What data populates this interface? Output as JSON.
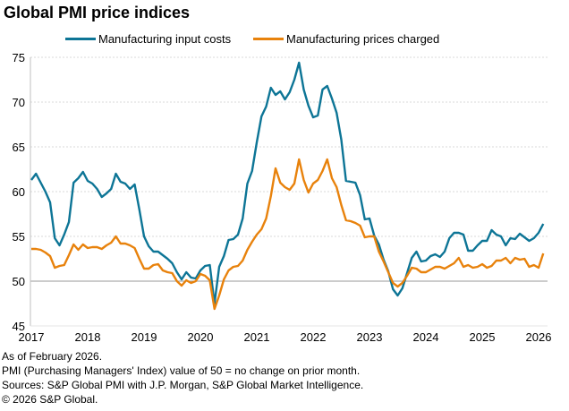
{
  "chart_data": {
    "type": "line",
    "title": "Global PMI price indices",
    "xlabel": "",
    "ylabel": "",
    "ylim": [
      45,
      75
    ],
    "yticks": [
      "45",
      "50",
      "55",
      "60",
      "65",
      "70",
      "75"
    ],
    "xticks": [
      "2017",
      "2018",
      "2019",
      "2020",
      "2021",
      "2022",
      "2023",
      "2024",
      "2025",
      "2026"
    ],
    "x_start": "2017-01",
    "x_end": "2026-02",
    "frequency": "monthly",
    "grid": true,
    "reference_line": 50,
    "legend_position": "top",
    "series": [
      {
        "name": "Manufacturing input costs",
        "color": "#0d7596",
        "values": [
          61.3,
          62.0,
          61.0,
          60.0,
          58.8,
          54.8,
          54.0,
          55.2,
          56.6,
          61.0,
          61.5,
          62.2,
          61.2,
          60.9,
          60.3,
          59.4,
          59.8,
          60.3,
          62.0,
          61.1,
          60.9,
          60.3,
          60.8,
          58.0,
          55.0,
          53.9,
          53.3,
          53.3,
          52.9,
          52.5,
          52.0,
          51.0,
          50.2,
          51.0,
          50.4,
          50.3,
          51.2,
          51.7,
          51.8,
          47.5,
          51.6,
          52.8,
          54.6,
          54.7,
          55.2,
          57.0,
          60.9,
          62.3,
          65.5,
          68.4,
          69.5,
          71.6,
          70.8,
          71.2,
          70.3,
          71.1,
          72.5,
          74.4,
          71.4,
          69.6,
          68.3,
          68.5,
          71.4,
          71.8,
          70.4,
          68.8,
          65.8,
          61.2,
          61.1,
          61.0,
          59.6,
          56.9,
          57.0,
          55.1,
          54.1,
          52.4,
          51.1,
          49.1,
          48.4,
          49.2,
          50.9,
          52.6,
          53.3,
          52.2,
          52.3,
          52.8,
          53.0,
          52.7,
          53.3,
          54.8,
          55.4,
          55.4,
          55.2,
          53.4,
          53.4,
          54.0,
          54.5,
          54.5,
          55.7,
          55.2,
          55.0,
          54.0,
          54.8,
          54.7,
          55.3,
          54.9,
          54.5,
          54.8,
          55.4,
          56.4
        ]
      },
      {
        "name": "Manufacturing prices charged",
        "color": "#e8820c",
        "values": [
          53.6,
          53.6,
          53.5,
          53.2,
          52.8,
          51.5,
          51.7,
          51.8,
          52.9,
          54.1,
          53.5,
          54.1,
          53.7,
          53.8,
          53.8,
          53.6,
          54.0,
          54.3,
          55.0,
          54.2,
          54.2,
          54.0,
          53.7,
          52.5,
          51.4,
          51.4,
          51.8,
          51.9,
          51.2,
          51.0,
          50.9,
          50.0,
          49.5,
          50.1,
          49.8,
          50.0,
          50.8,
          50.6,
          50.1,
          46.9,
          48.4,
          50.2,
          51.2,
          51.6,
          51.7,
          52.3,
          53.5,
          54.4,
          55.2,
          55.8,
          57.0,
          59.5,
          62.6,
          61.0,
          60.5,
          60.2,
          60.9,
          63.6,
          61.3,
          59.9,
          60.9,
          61.3,
          62.3,
          63.6,
          61.5,
          60.5,
          58.5,
          56.8,
          56.7,
          56.5,
          56.2,
          54.9,
          55.0,
          55.0,
          53.3,
          52.2,
          51.0,
          49.8,
          49.4,
          49.8,
          50.6,
          51.5,
          51.4,
          51.0,
          51.0,
          51.3,
          51.6,
          51.6,
          51.4,
          51.7,
          52.0,
          52.6,
          51.6,
          51.8,
          51.5,
          51.6,
          51.9,
          51.5,
          51.7,
          52.3,
          52.3,
          52.6,
          52.0,
          52.6,
          52.4,
          52.5,
          51.6,
          51.8,
          51.5,
          53.1
        ]
      }
    ]
  },
  "footer": {
    "as_of": "As of February 2026.",
    "note": "PMI (Purchasing Managers' Index) value of 50 = no change on prior month.",
    "sources": "Sources: S&P Global PMI with J.P. Morgan, S&P Global Market Intelligence.",
    "copyright": "© 2026 S&P Global."
  }
}
